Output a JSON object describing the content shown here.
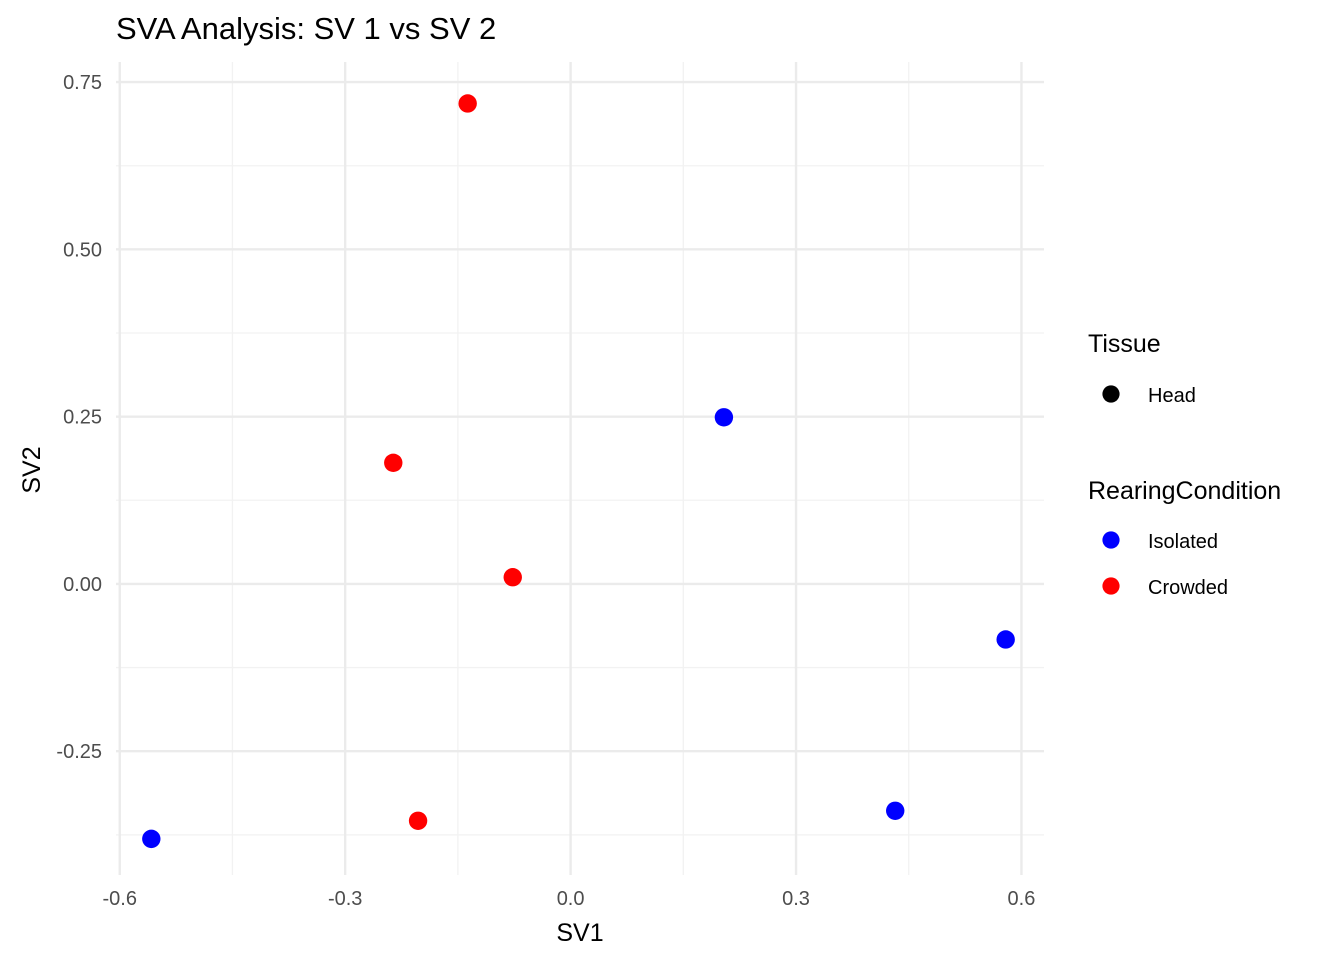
{
  "chart_data": {
    "type": "scatter",
    "title": "SVA Analysis: SV 1  vs SV 2",
    "xlabel": "SV1",
    "ylabel": "SV2",
    "xlim": [
      -0.605,
      0.63
    ],
    "ylim": [
      -0.435,
      0.78
    ],
    "x_ticks": [
      -0.6,
      -0.3,
      0.0,
      0.3,
      0.6
    ],
    "x_tick_labels": [
      "-0.6",
      "-0.3",
      "0.0",
      "0.3",
      "0.6"
    ],
    "x_minor_ticks": [
      -0.45,
      -0.15,
      0.15,
      0.45
    ],
    "y_ticks": [
      -0.25,
      0.0,
      0.25,
      0.5,
      0.75
    ],
    "y_tick_labels": [
      "-0.25",
      "0.00",
      "0.25",
      "0.50",
      "0.75"
    ],
    "y_minor_ticks": [
      -0.375,
      -0.125,
      0.125,
      0.375,
      0.625
    ],
    "grid": true,
    "legend_position": "right",
    "legends": [
      {
        "title": "Tissue",
        "entries": [
          {
            "label": "Head",
            "color": "#000000"
          }
        ]
      },
      {
        "title": "RearingCondition",
        "entries": [
          {
            "label": "Isolated",
            "color": "#0000ff"
          },
          {
            "label": "Crowded",
            "color": "#ff0000"
          }
        ]
      }
    ],
    "series": [
      {
        "name": "Isolated",
        "color": "#0000ff",
        "points": [
          {
            "x": -0.558,
            "y": -0.381
          },
          {
            "x": 0.204,
            "y": 0.249
          },
          {
            "x": 0.432,
            "y": -0.339
          },
          {
            "x": 0.579,
            "y": -0.083
          }
        ]
      },
      {
        "name": "Crowded",
        "color": "#ff0000",
        "points": [
          {
            "x": -0.137,
            "y": 0.718
          },
          {
            "x": -0.236,
            "y": 0.181
          },
          {
            "x": -0.077,
            "y": 0.01
          },
          {
            "x": -0.203,
            "y": -0.354
          }
        ]
      }
    ]
  }
}
